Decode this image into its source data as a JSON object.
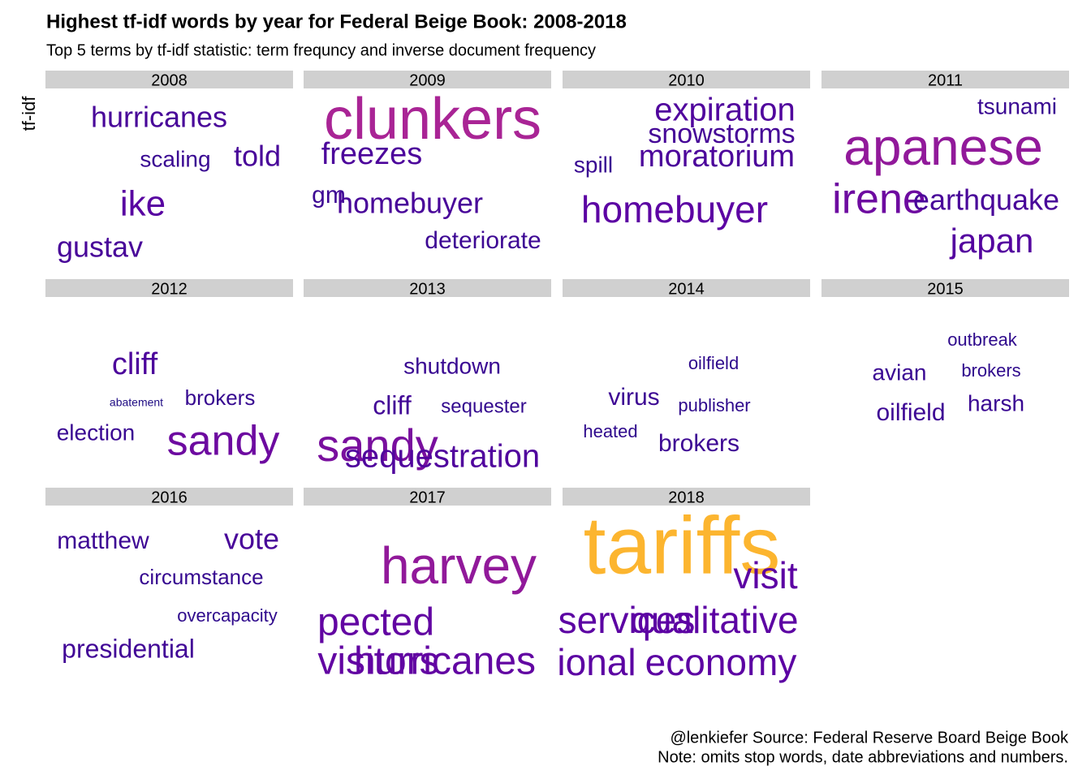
{
  "chart_data": {
    "type": "wordcloud",
    "title": "Highest tf-idf words by year for Federal Beige Book: 2008-2018",
    "subtitle": "Top 5 terms by tf-idf statistic: term frequncy and inverse document frequency",
    "y_label": "tf-idf",
    "caption": [
      "@lenkiefer Source: Federal Reserve Board Beige Book",
      "Note: omits stop words, date abbreviations and numbers."
    ],
    "facets": [
      {
        "label": "2008",
        "words": [
          "hurricanes",
          "scaling",
          "told",
          "ike",
          "gustav"
        ],
        "values": [
          36,
          28,
          36,
          44,
          36
        ]
      },
      {
        "label": "2009",
        "words": [
          "clunkers",
          "freezes",
          "gm",
          "homebuyer",
          "deteriorate"
        ],
        "values": [
          72,
          38,
          30,
          36,
          30
        ]
      },
      {
        "label": "2010",
        "words": [
          "expiration",
          "snowstorms",
          "moratorium",
          "spill",
          "homebuyer"
        ],
        "values": [
          40,
          34,
          38,
          28,
          46
        ]
      },
      {
        "label": "2011",
        "words": [
          "tsunami",
          "apanese",
          "irene",
          "earthquake",
          "japan"
        ],
        "values": [
          28,
          64,
          52,
          36,
          42
        ]
      },
      {
        "label": "2012",
        "words": [
          "cliff",
          "abatement",
          "brokers",
          "election",
          "sandy"
        ],
        "values": [
          38,
          14,
          26,
          28,
          52
        ]
      },
      {
        "label": "2013",
        "words": [
          "shutdown",
          "cliff",
          "sequester",
          "sandy",
          "sequestration"
        ],
        "values": [
          28,
          32,
          24,
          56,
          40
        ]
      },
      {
        "label": "2014",
        "words": [
          "oilfield",
          "virus",
          "publisher",
          "heated",
          "brokers"
        ],
        "values": [
          22,
          30,
          22,
          22,
          30
        ]
      },
      {
        "label": "2015",
        "words": [
          "outbreak",
          "avian",
          "brokers",
          "oilfield",
          "harsh"
        ],
        "values": [
          22,
          28,
          22,
          30,
          28
        ]
      },
      {
        "label": "2016",
        "words": [
          "matthew",
          "vote",
          "circumstance",
          "overcapacity",
          "presidential"
        ],
        "values": [
          30,
          36,
          26,
          22,
          32
        ]
      },
      {
        "label": "2017",
        "words": [
          "harvey",
          "pected",
          "visitors",
          "hurricanes"
        ],
        "values": [
          64,
          48,
          48,
          48
        ]
      },
      {
        "label": "2018",
        "words": [
          "tariffs",
          "visit",
          "services",
          "qualitative",
          "ional",
          "economy"
        ],
        "values": [
          100,
          46,
          46,
          46,
          46,
          46
        ]
      }
    ]
  }
}
